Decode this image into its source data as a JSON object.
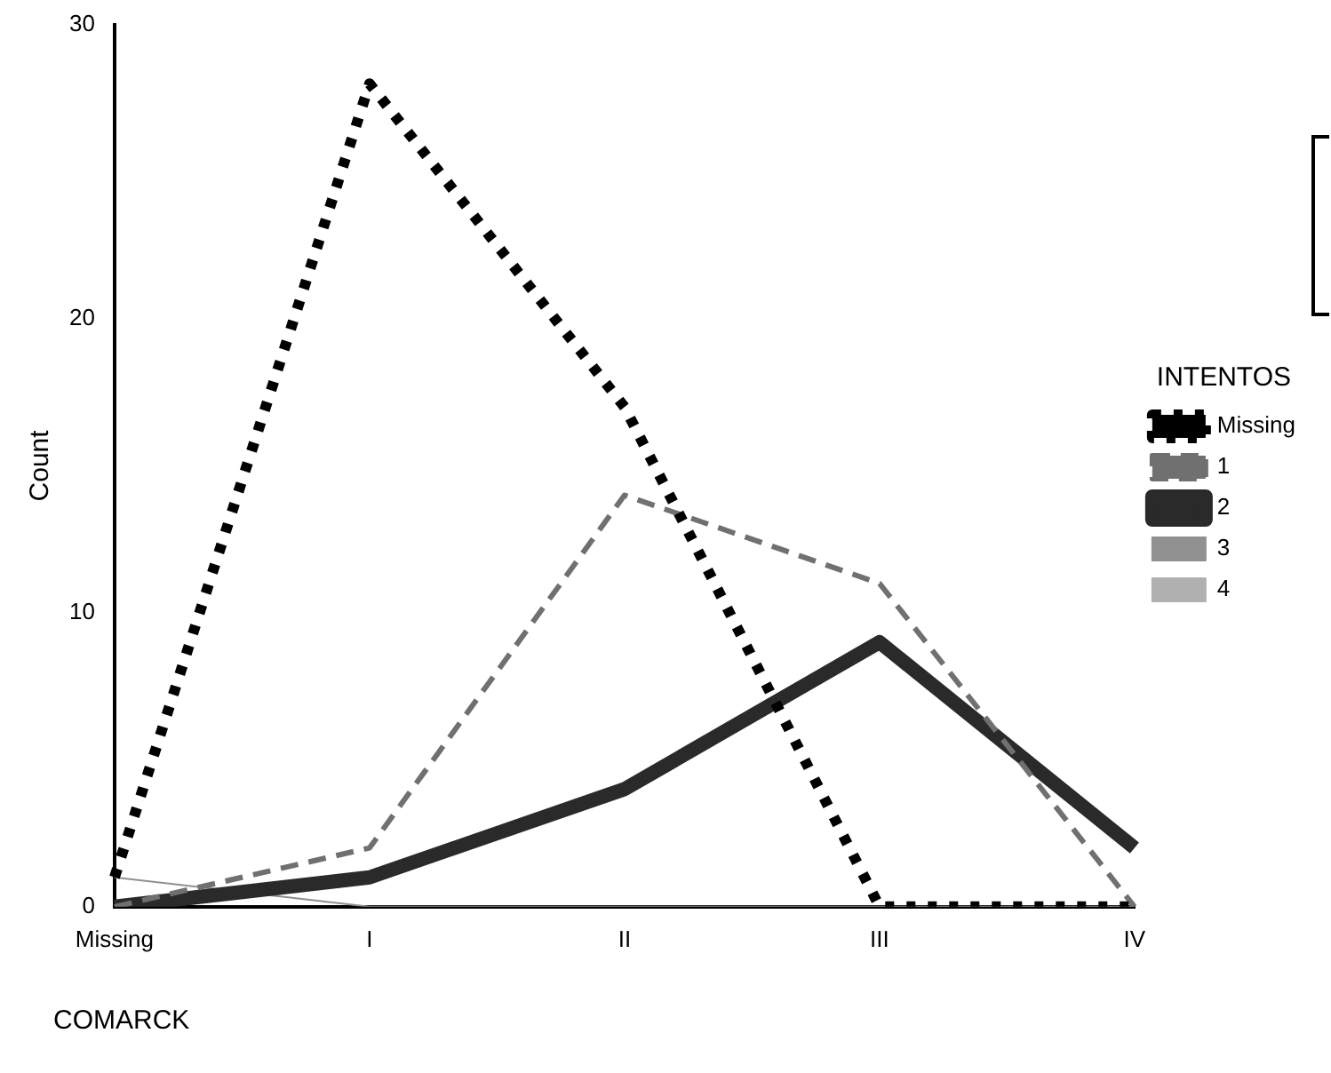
{
  "chart_data": {
    "type": "line",
    "xlabel": "COMARCK",
    "ylabel": "Count",
    "legend_title": "INTENTOS",
    "legend": "right",
    "categories": [
      "Missing",
      "I",
      "II",
      "III",
      "IV"
    ],
    "ylim": [
      0,
      30
    ],
    "yticks": [
      0,
      10,
      20,
      30
    ],
    "grid": false,
    "marker": "none",
    "series": [
      {
        "name": "Missing",
        "color": "#000000",
        "line_style": "dotted",
        "values": [
          1,
          28,
          17,
          0,
          0
        ]
      },
      {
        "name": "1",
        "color": "#707070",
        "line_style": "dashed",
        "values": [
          0,
          2,
          14,
          11,
          0
        ]
      },
      {
        "name": "2",
        "color": "#2a2a2a",
        "line_style": "solid",
        "values": [
          0,
          1,
          4,
          9,
          2
        ]
      },
      {
        "name": "3",
        "color": "#909090",
        "line_style": "solid",
        "values": [
          1,
          0,
          0,
          0,
          0
        ]
      },
      {
        "name": "4",
        "color": "#b0b0b0",
        "line_style": "solid",
        "values": [
          null,
          null,
          null,
          null,
          null
        ]
      }
    ]
  }
}
